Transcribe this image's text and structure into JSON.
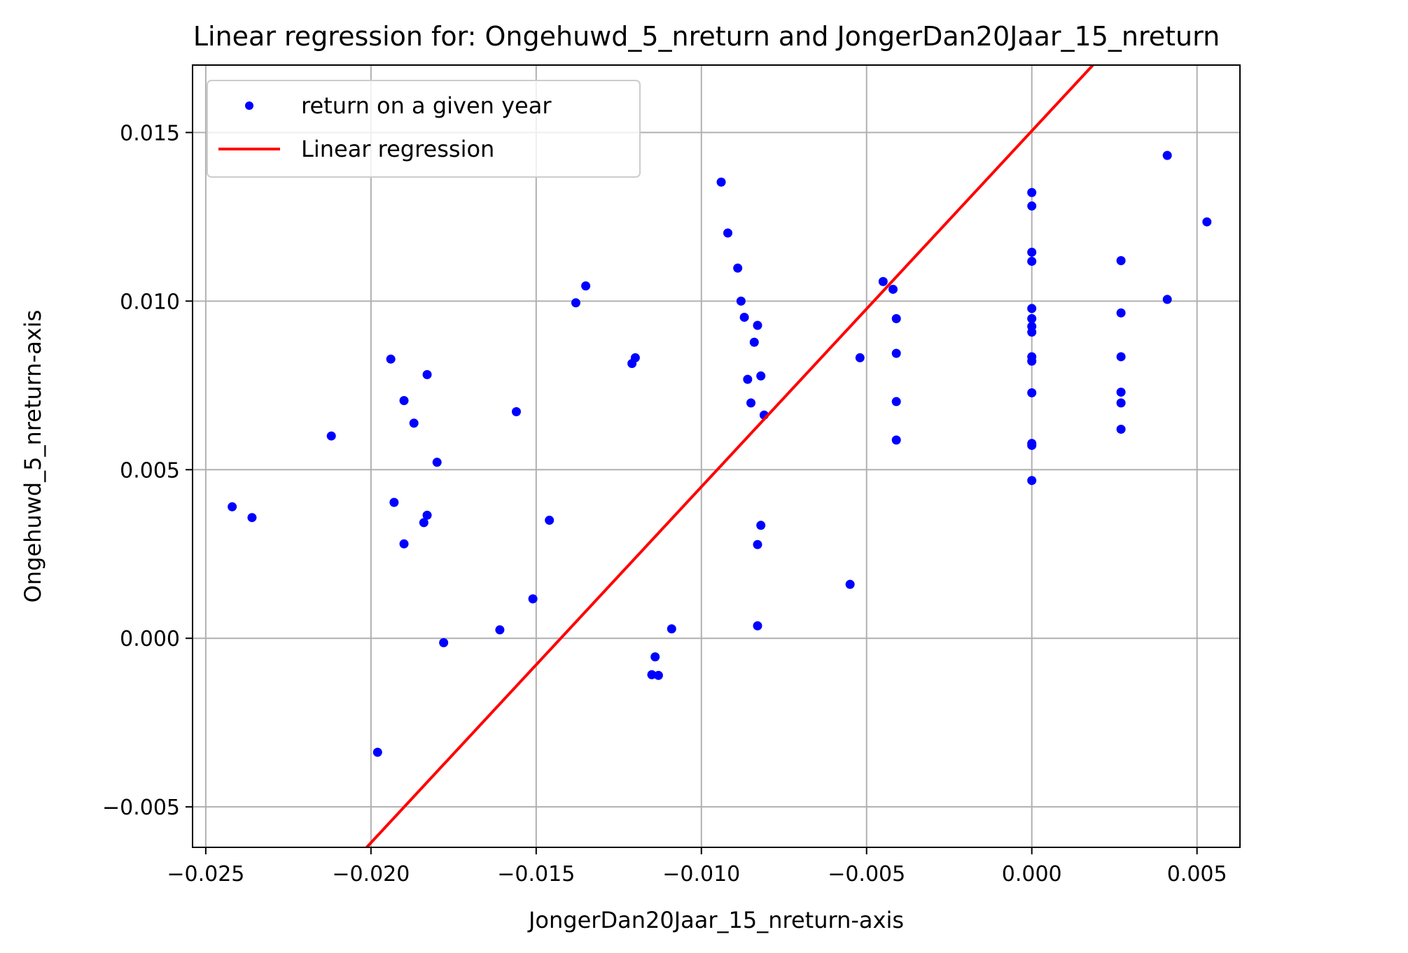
{
  "chart_data": {
    "type": "scatter",
    "title": "Linear regression for: Ongehuwd_5_nreturn and JongerDan20Jaar_15_nreturn",
    "xlabel": "JongerDan20Jaar_15_nreturn-axis",
    "ylabel": "Ongehuwd_5_nreturn-axis",
    "xlim": [
      -0.0254,
      0.0063
    ],
    "ylim": [
      -0.0062,
      0.017
    ],
    "grid": true,
    "legend_position": "top-left",
    "x_ticks": [
      -0.025,
      -0.02,
      -0.015,
      -0.01,
      -0.005,
      0.0,
      0.005
    ],
    "x_tick_labels": [
      "−0.025",
      "−0.020",
      "−0.015",
      "−0.010",
      "−0.005",
      "0.000",
      "0.005"
    ],
    "y_ticks": [
      -0.005,
      0.0,
      0.005,
      0.01,
      0.015
    ],
    "y_tick_labels": [
      "−0.005",
      "0.000",
      "0.005",
      "0.010",
      "0.015"
    ],
    "series": [
      {
        "name": "return on a given year",
        "kind": "scatter",
        "color": "#0000ff",
        "points": [
          [
            -0.0242,
            0.0039
          ],
          [
            -0.0236,
            0.00358
          ],
          [
            -0.0212,
            0.006
          ],
          [
            -0.0198,
            -0.00338
          ],
          [
            -0.0194,
            0.00828
          ],
          [
            -0.0193,
            0.00403
          ],
          [
            -0.019,
            0.0028
          ],
          [
            -0.019,
            0.00705
          ],
          [
            -0.0187,
            0.00638
          ],
          [
            -0.0184,
            0.00343
          ],
          [
            -0.0183,
            0.00365
          ],
          [
            -0.0183,
            0.00782
          ],
          [
            -0.018,
            0.00522
          ],
          [
            -0.0178,
            -0.00013
          ],
          [
            -0.0161,
            0.00025
          ],
          [
            -0.0156,
            0.00672
          ],
          [
            -0.0151,
            0.00117
          ],
          [
            -0.0146,
            0.0035
          ],
          [
            -0.0138,
            0.00995
          ],
          [
            -0.0135,
            0.01045
          ],
          [
            -0.0121,
            0.00815
          ],
          [
            -0.012,
            0.00832
          ],
          [
            -0.0115,
            -0.00108
          ],
          [
            -0.0114,
            -0.00055
          ],
          [
            -0.0113,
            -0.0011
          ],
          [
            -0.0109,
            0.00028
          ],
          [
            -0.0094,
            0.01353
          ],
          [
            -0.0092,
            0.01202
          ],
          [
            -0.0089,
            0.01098
          ],
          [
            -0.0088,
            0.01
          ],
          [
            -0.0087,
            0.00952
          ],
          [
            -0.0086,
            0.00768
          ],
          [
            -0.0085,
            0.00698
          ],
          [
            -0.0084,
            0.00878
          ],
          [
            -0.0083,
            0.00928
          ],
          [
            -0.0083,
            0.00278
          ],
          [
            -0.0083,
            0.00037
          ],
          [
            -0.0082,
            0.00335
          ],
          [
            -0.0082,
            0.00778
          ],
          [
            -0.0081,
            0.00662
          ],
          [
            -0.0055,
            0.0016
          ],
          [
            -0.0052,
            0.00832
          ],
          [
            -0.0045,
            0.01058
          ],
          [
            -0.0042,
            0.01035
          ],
          [
            -0.0041,
            0.00948
          ],
          [
            -0.0041,
            0.00845
          ],
          [
            -0.0041,
            0.00702
          ],
          [
            -0.0041,
            0.00588
          ],
          [
            0.0,
            0.01322
          ],
          [
            0.0,
            0.01282
          ],
          [
            0.0,
            0.01145
          ],
          [
            0.0,
            0.01118
          ],
          [
            0.0,
            0.00978
          ],
          [
            0.0,
            0.00948
          ],
          [
            0.0,
            0.00925
          ],
          [
            0.0,
            0.00908
          ],
          [
            0.0,
            0.00835
          ],
          [
            0.0,
            0.00822
          ],
          [
            0.0,
            0.00728
          ],
          [
            0.0,
            0.00578
          ],
          [
            0.0,
            0.00572
          ],
          [
            0.0,
            0.00468
          ],
          [
            0.0027,
            0.0112
          ],
          [
            0.0027,
            0.00965
          ],
          [
            0.0027,
            0.00835
          ],
          [
            0.0027,
            0.0073
          ],
          [
            0.0027,
            0.00698
          ],
          [
            0.0027,
            0.0062
          ],
          [
            0.0041,
            0.01432
          ],
          [
            0.0041,
            0.01005
          ],
          [
            0.0053,
            0.01235
          ]
        ]
      },
      {
        "name": "Linear regression",
        "kind": "line",
        "color": "#ff0000",
        "points": [
          [
            -0.02013,
            -0.0062
          ],
          [
            0.00185,
            0.017
          ]
        ]
      }
    ]
  }
}
